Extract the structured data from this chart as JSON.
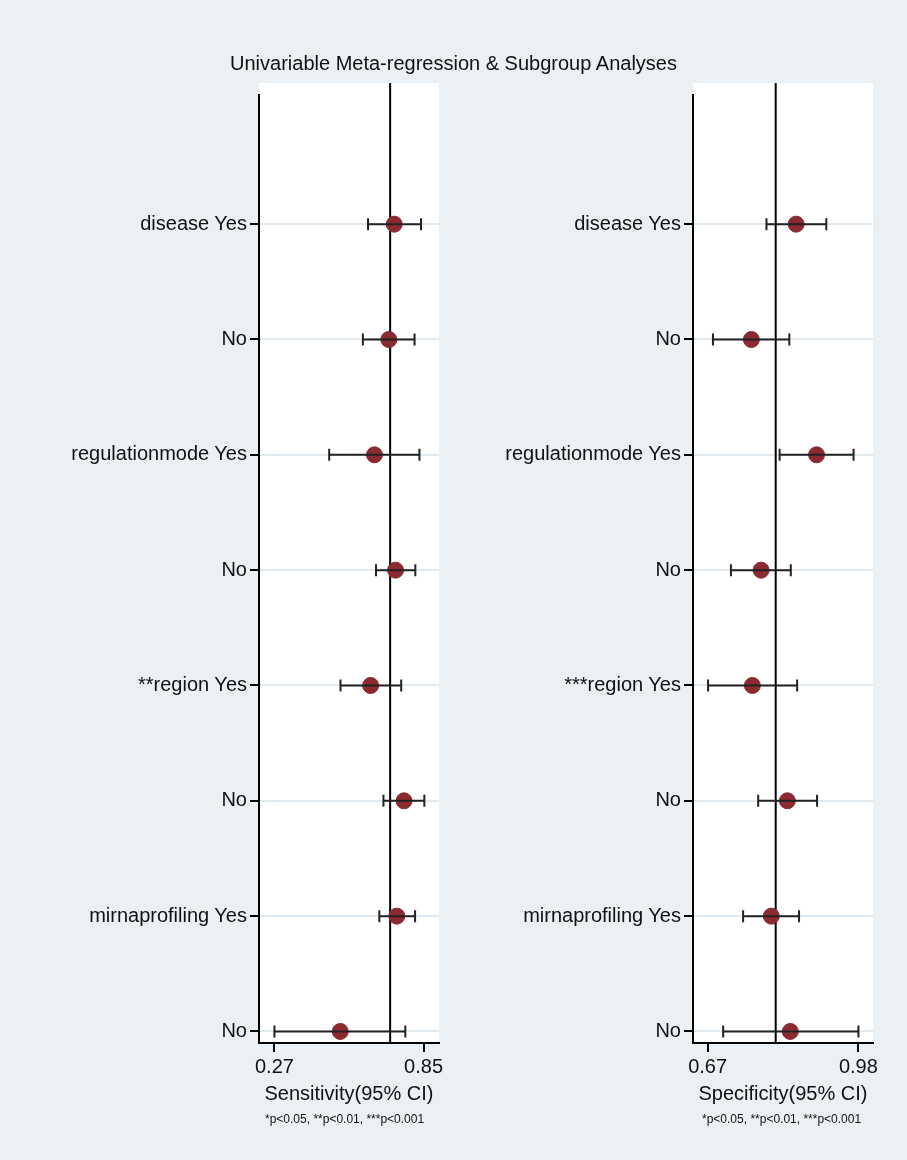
{
  "chart_data": [
    {
      "type": "scatter",
      "title": "Univariable Meta-regression & Subgroup Analyses",
      "orientation": "horizontal",
      "xlabel": "Sensitivity(95% CI)",
      "categories": [
        "disease Yes",
        "No",
        "regulationmode Yes",
        "No",
        "**region Yes",
        "No",
        "mirnaprofiling Yes",
        "No"
      ],
      "values": [
        0.736,
        0.715,
        0.659,
        0.741,
        0.644,
        0.774,
        0.746,
        0.526
      ],
      "errors": [
        [
          0.634,
          0.84
        ],
        [
          0.614,
          0.815
        ],
        [
          0.483,
          0.834
        ],
        [
          0.665,
          0.818
        ],
        [
          0.527,
          0.763
        ],
        [
          0.694,
          0.853
        ],
        [
          0.678,
          0.817
        ],
        [
          0.27,
          0.779
        ]
      ],
      "color": "#8b2a31",
      "marker": "circle",
      "xlim": [
        0.21,
        0.91
      ],
      "xticks": [
        0.27,
        0.85
      ],
      "grid": "y",
      "legend": false,
      "ref_lines": [
        {
          "axis": "x",
          "value": 0.72,
          "color": "#000000"
        }
      ],
      "annotations": [
        "*p<0.05, **p<0.01, ***p<0.001"
      ]
    },
    {
      "type": "scatter",
      "orientation": "horizontal",
      "xlabel": "Specificity(95% CI)",
      "categories": [
        "disease Yes",
        "No",
        "regulationmode Yes",
        "No",
        "***region Yes",
        "No",
        "mirnaprofiling Yes",
        "No"
      ],
      "values": [
        0.852,
        0.76,
        0.894,
        0.78,
        0.762,
        0.834,
        0.801,
        0.84
      ],
      "errors": [
        [
          0.791,
          0.914
        ],
        [
          0.681,
          0.838
        ],
        [
          0.818,
          0.97
        ],
        [
          0.718,
          0.841
        ],
        [
          0.671,
          0.854
        ],
        [
          0.774,
          0.895
        ],
        [
          0.743,
          0.858
        ],
        [
          0.702,
          0.98
        ]
      ],
      "color": "#8b2a31",
      "marker": "circle",
      "xlim": [
        0.64,
        1.01
      ],
      "xticks": [
        0.67,
        0.98
      ],
      "grid": "y",
      "legend": false,
      "ref_lines": [
        {
          "axis": "x",
          "value": 0.81,
          "color": "#000000"
        }
      ],
      "annotations": [
        "*p<0.05, **p<0.01, ***p<0.001"
      ]
    }
  ]
}
